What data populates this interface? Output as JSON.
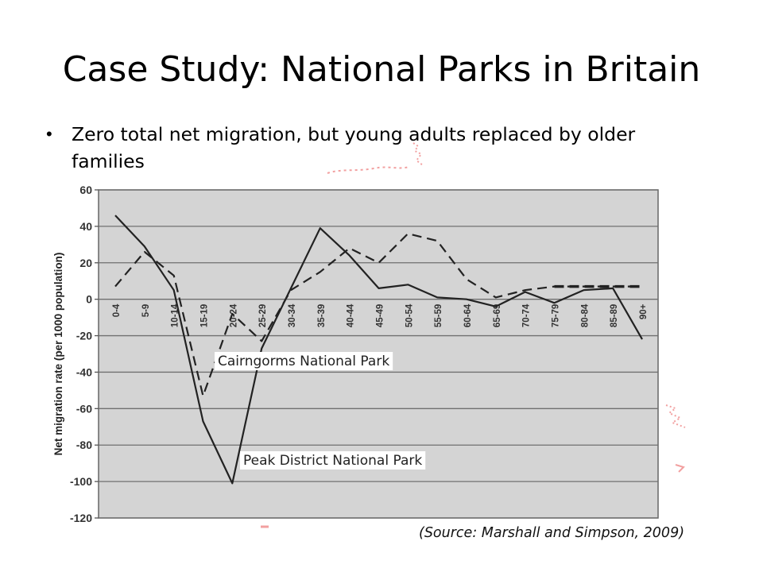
{
  "slide": {
    "title": "Case Study: National Parks in Britain",
    "bullet": "Zero total net migration,  but young adults replaced by older families",
    "source": "(Source: Marshall and Simpson, 2009)"
  },
  "chart_data": {
    "type": "line",
    "ylabel": "Net migration rate (per 1000 population)",
    "xlabel": "",
    "ylim": [
      -120,
      60
    ],
    "yticks": [
      60,
      40,
      20,
      0,
      -20,
      -40,
      -60,
      -80,
      -100,
      -120
    ],
    "grid": true,
    "background": "#d4d4d4",
    "categories": [
      "0-4",
      "5-9",
      "10-14",
      "15-19",
      "20-24",
      "25-29",
      "30-34",
      "35-39",
      "40-44",
      "45-49",
      "50-54",
      "55-59",
      "60-64",
      "65-69",
      "70-74",
      "75-79",
      "80-84",
      "85-89",
      "90+"
    ],
    "series": [
      {
        "name": "Cairngorms National Park",
        "style": "dashed",
        "color": "#222222",
        "values": [
          7,
          26,
          13,
          -53,
          -8,
          -23,
          5,
          15,
          28,
          20,
          36,
          32,
          11,
          1,
          5,
          7,
          7,
          7,
          7
        ]
      },
      {
        "name": "Peak District National Park",
        "style": "solid",
        "color": "#222222",
        "values": [
          46,
          29,
          5,
          -67,
          -101,
          -27,
          6,
          39,
          24,
          6,
          8,
          1,
          0,
          -4,
          4,
          -2,
          5,
          6,
          -22
        ]
      }
    ]
  }
}
